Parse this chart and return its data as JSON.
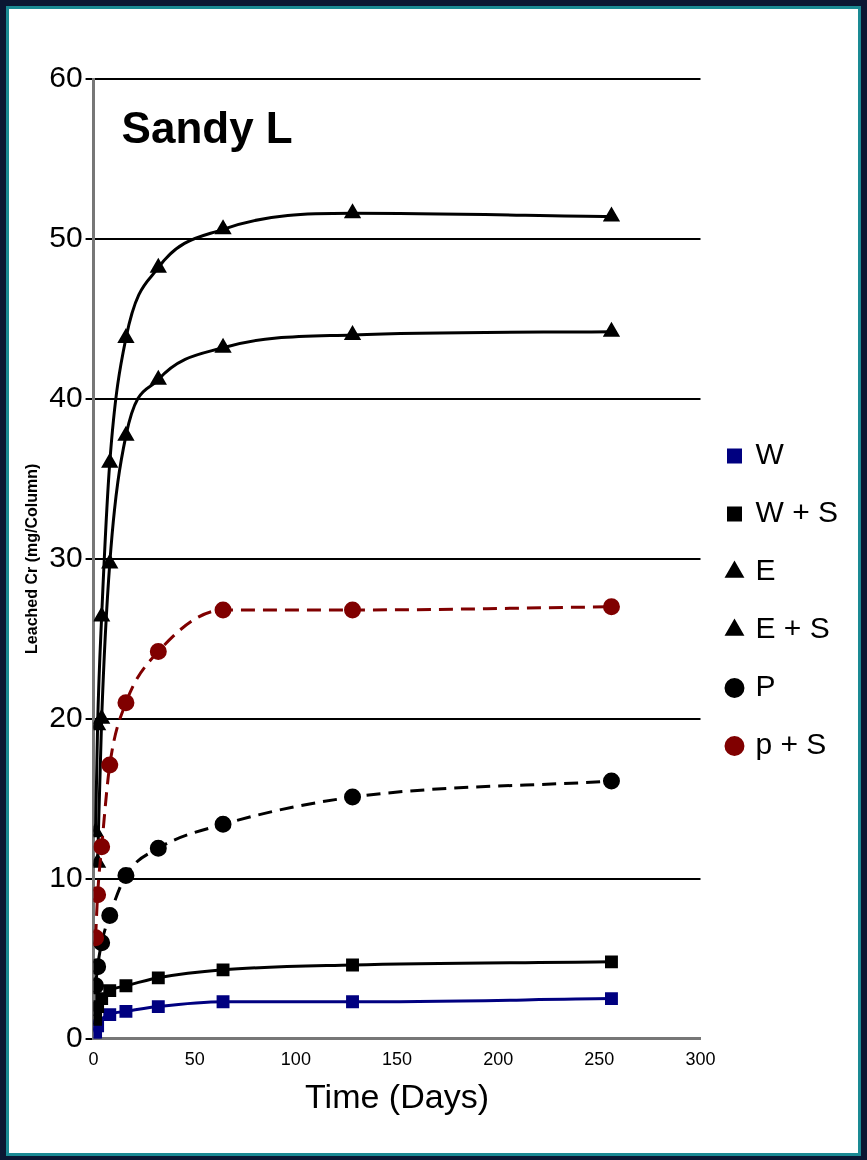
{
  "chart_data": {
    "type": "line",
    "title": "Sandy L",
    "xlabel": "Time (Days)",
    "ylabel": "Leached Cr (mg/Column)",
    "x": [
      1,
      2,
      4,
      8,
      16,
      32,
      64,
      128,
      256
    ],
    "series": [
      {
        "name": "W",
        "color": "#000080",
        "marker": "square",
        "values": [
          0.3,
          0.8,
          null,
          1.5,
          1.7,
          2.0,
          2.3,
          2.3,
          2.5
        ]
      },
      {
        "name": "W + S",
        "color": "#000000",
        "marker": "square",
        "values": [
          1.2,
          2.0,
          2.5,
          3.0,
          3.3,
          3.8,
          4.3,
          4.6,
          4.8
        ]
      },
      {
        "name": "E",
        "color": "#000000",
        "marker": "triangle",
        "values": [
          null,
          11,
          20,
          29.7,
          37.7,
          41.2,
          43.2,
          44,
          44.2
        ]
      },
      {
        "name": "E + S",
        "color": "#000000",
        "marker": "triangle",
        "values": [
          12.9,
          19.6,
          26.4,
          36,
          43.8,
          48.2,
          50.6,
          51.6,
          51.4
        ]
      },
      {
        "name": "P",
        "color": "#000000",
        "marker": "circle",
        "line_style": "dashed",
        "values": [
          3.3,
          4.5,
          6,
          7.7,
          10.2,
          11.9,
          13.4,
          15.1,
          16.1
        ]
      },
      {
        "name": "p + S",
        "color": "#800000",
        "marker": "circle",
        "line_style": "dashed",
        "values": [
          6.3,
          9,
          12,
          17.1,
          21,
          24.2,
          26.8,
          26.8,
          27
        ]
      }
    ],
    "xlim": [
      0,
      300
    ],
    "xticks": [
      0,
      50,
      100,
      150,
      200,
      250,
      300
    ],
    "ylim": [
      0,
      60
    ],
    "yticks": [
      0,
      10,
      20,
      30,
      40,
      50,
      60
    ],
    "grid": "y",
    "legend": "right"
  }
}
